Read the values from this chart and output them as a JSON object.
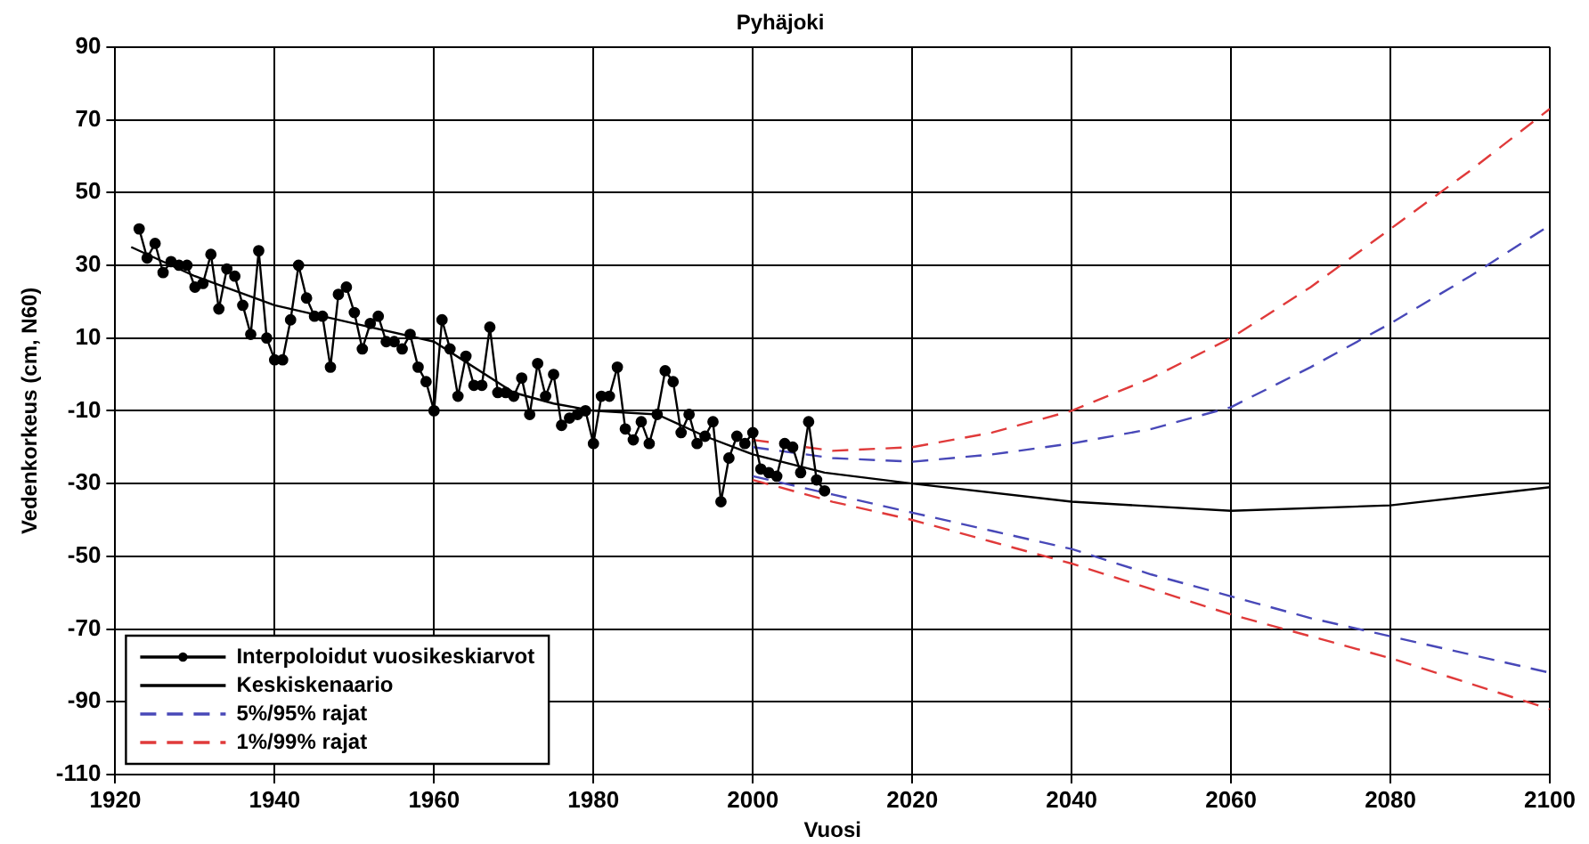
{
  "chart_data": {
    "type": "line",
    "title": "Pyhäjoki",
    "xlabel": "Vuosi",
    "ylabel": "Vedenkorkeus (cm, N60)",
    "xlim": [
      1920,
      2100
    ],
    "xticks": [
      1920,
      1940,
      1960,
      1980,
      2000,
      2020,
      2040,
      2060,
      2080,
      2100
    ],
    "ylim": [
      -110,
      90
    ],
    "yticks": [
      -110,
      -90,
      -70,
      -50,
      -30,
      -10,
      10,
      30,
      50,
      70,
      90
    ],
    "grid": true,
    "legend": "bottom left",
    "series": [
      {
        "name": "Interpoloidut vuosikeskiarvot",
        "color": "#000000",
        "marker": "circle",
        "line_style": "solid",
        "x": [
          1923,
          1924,
          1925,
          1926,
          1927,
          1928,
          1929,
          1930,
          1931,
          1932,
          1933,
          1934,
          1935,
          1936,
          1937,
          1938,
          1939,
          1940,
          1941,
          1942,
          1943,
          1944,
          1945,
          1946,
          1947,
          1948,
          1949,
          1950,
          1951,
          1952,
          1953,
          1954,
          1955,
          1956,
          1957,
          1958,
          1959,
          1960,
          1961,
          1962,
          1963,
          1964,
          1965,
          1966,
          1967,
          1968,
          1969,
          1970,
          1971,
          1972,
          1973,
          1974,
          1975,
          1976,
          1977,
          1978,
          1979,
          1980,
          1981,
          1982,
          1983,
          1984,
          1985,
          1986,
          1987,
          1988,
          1989,
          1990,
          1991,
          1992,
          1993,
          1994,
          1995,
          1996,
          1997,
          1998,
          1999,
          2000,
          2001,
          2002,
          2003,
          2004,
          2005,
          2006,
          2007,
          2008,
          2009
        ],
        "values": [
          40,
          32,
          36,
          28,
          31,
          30,
          30,
          24,
          25,
          33,
          18,
          29,
          27,
          19,
          11,
          34,
          10,
          4,
          4,
          15,
          30,
          21,
          16,
          16,
          2,
          22,
          24,
          17,
          7,
          14,
          16,
          9,
          9,
          7,
          11,
          2,
          -2,
          -10,
          15,
          7,
          -6,
          5,
          -3,
          -3,
          13,
          -5,
          -5,
          -6,
          -1,
          -11,
          3,
          -6,
          0,
          -14,
          -12,
          -11,
          -10,
          -19,
          -6,
          -6,
          2,
          -15,
          -18,
          -13,
          -19,
          -11,
          1,
          -2,
          -16,
          -11,
          -19,
          -17,
          -13,
          -35,
          -23,
          -17,
          -19,
          -16,
          -26,
          -27,
          -28,
          -19,
          -20,
          -27,
          -13,
          -29,
          -32
        ]
      },
      {
        "name": "Keskiskenaario",
        "color": "#000000",
        "line_style": "solid",
        "x": [
          1922,
          1930,
          1940,
          1950,
          1960,
          1970,
          1975,
          1980,
          1988,
          1994,
          2000,
          2009,
          2020,
          2040,
          2060,
          2080,
          2100
        ],
        "values": [
          35,
          27,
          19,
          14,
          9,
          -5,
          -8,
          -10,
          -11,
          -17,
          -22,
          -27,
          -30,
          -35,
          -37.5,
          -36,
          -31
        ]
      },
      {
        "name": "5%/95% rajat",
        "color": "#4848b8",
        "line_style": "dashed",
        "x": [
          2000,
          2010,
          2020,
          2030,
          2040,
          2050,
          2060,
          2070,
          2080,
          2090,
          2100
        ],
        "values": [
          -20,
          -23,
          -24,
          -22,
          -19,
          -15,
          -9,
          2,
          14,
          27,
          41
        ]
      },
      {
        "color": "#4848b8",
        "line_style": "dashed",
        "x": [
          2000,
          2010,
          2020,
          2030,
          2040,
          2050,
          2060,
          2070,
          2080,
          2090,
          2100
        ],
        "values": [
          -28,
          -33,
          -38,
          -43,
          -48,
          -55,
          -61,
          -67,
          -72,
          -77,
          -82
        ]
      },
      {
        "name": "1%/99% rajat",
        "color": "#e03a3a",
        "line_style": "dashed",
        "x": [
          2000,
          2010,
          2020,
          2030,
          2040,
          2050,
          2060,
          2070,
          2080,
          2090,
          2100
        ],
        "values": [
          -18,
          -21,
          -20,
          -16,
          -10,
          -1,
          10,
          24,
          40,
          56,
          73
        ]
      },
      {
        "color": "#e03a3a",
        "line_style": "dashed",
        "x": [
          2000,
          2010,
          2020,
          2030,
          2040,
          2050,
          2060,
          2070,
          2080,
          2090,
          2100
        ],
        "values": [
          -29,
          -35,
          -40,
          -46,
          -52,
          -59,
          -66,
          -72,
          -78,
          -85,
          -92
        ]
      }
    ]
  }
}
